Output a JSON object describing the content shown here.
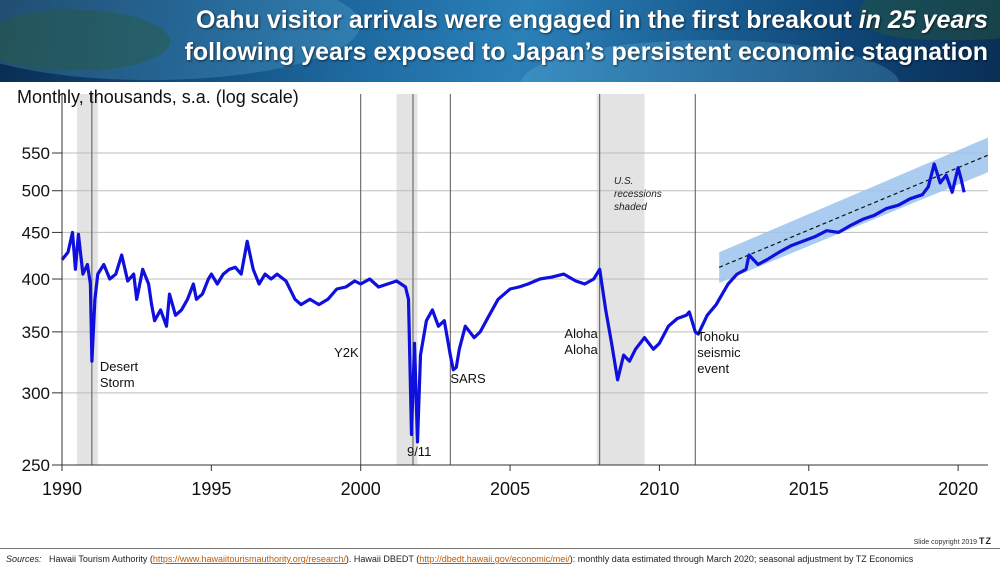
{
  "header": {
    "title_line1_normal": "Oahu visitor arrivals were engaged in the first breakout ",
    "title_line1_italic": "in 25 years",
    "title_line2": "following years exposed to Japan’s persistent economic stagnation"
  },
  "footer": {
    "sources_label": "Sources:",
    "source_1": "Hawaii Tourism Authority (",
    "source_1_link": "https://www.hawaiitourismauthority.org/research/",
    "source_1_close": ").  Hawaii DBEDT (",
    "source_2_link": "http://dbedt.hawaii.gov/economic/mei/",
    "source_2_close": "): monthly data estimated through March 2020; seasonal adjustment by TZ Economics",
    "copyright": "Slide copyright 2019",
    "logo": "TZ"
  },
  "colors": {
    "series": "#1010dd",
    "trend_band": "#9cc3ef",
    "recession": "#e3e3e3",
    "banner": "#1a5f94"
  },
  "chart_data": {
    "type": "line",
    "title": "",
    "ylabel": "Monthly, thousands, s.a. (log scale)",
    "xlabel": "",
    "y_scale": "log",
    "ylim": [
      250,
      580
    ],
    "xlim": [
      1990,
      2021
    ],
    "y_ticks": [
      250,
      300,
      350,
      400,
      450,
      500,
      550
    ],
    "x_ticks": [
      1990,
      1995,
      2000,
      2005,
      2010,
      2015,
      2020
    ],
    "recessions": [
      [
        1990.5,
        1991.2
      ],
      [
        2001.2,
        2001.9
      ],
      [
        2007.9,
        2009.5
      ]
    ],
    "recession_note": "U.S. recessions shaded",
    "events": [
      {
        "year": 1991.0,
        "label": "Desert Storm"
      },
      {
        "year": 2000.0,
        "label": "Y2K"
      },
      {
        "year": 2001.75,
        "label": "9/11"
      },
      {
        "year": 2003.0,
        "label": "SARS"
      },
      {
        "year": 2008.0,
        "label": "Aloha Aloha"
      },
      {
        "year": 2011.2,
        "label": "Tohoku seismic event"
      }
    ],
    "trend": {
      "x": [
        2012.0,
        2021.0
      ],
      "y": [
        412,
        547
      ],
      "band_x": [
        2012.0,
        2021.0
      ],
      "band_low": [
        396,
        524
      ],
      "band_high": [
        428,
        572
      ]
    },
    "series": [
      {
        "name": "Oahu visitor arrivals",
        "x": [
          1990.0,
          1990.2,
          1990.35,
          1990.45,
          1990.55,
          1990.7,
          1990.85,
          1990.95,
          1991.0,
          1991.1,
          1991.2,
          1991.4,
          1991.6,
          1991.8,
          1992.0,
          1992.2,
          1992.4,
          1992.5,
          1992.7,
          1992.9,
          1993.0,
          1993.1,
          1993.3,
          1993.5,
          1993.6,
          1993.8,
          1994.0,
          1994.2,
          1994.4,
          1994.5,
          1994.7,
          1994.9,
          1995.0,
          1995.2,
          1995.4,
          1995.6,
          1995.8,
          1996.0,
          1996.2,
          1996.4,
          1996.6,
          1996.8,
          1997.0,
          1997.2,
          1997.5,
          1997.8,
          1998.0,
          1998.3,
          1998.6,
          1998.9,
          1999.2,
          1999.5,
          1999.8,
          2000.0,
          2000.3,
          2000.6,
          2000.9,
          2001.2,
          2001.5,
          2001.6,
          2001.7,
          2001.8,
          2001.9,
          2002.0,
          2002.2,
          2002.4,
          2002.6,
          2002.8,
          2003.0,
          2003.1,
          2003.2,
          2003.3,
          2003.5,
          2003.8,
          2004.0,
          2004.3,
          2004.6,
          2005.0,
          2005.3,
          2005.6,
          2006.0,
          2006.4,
          2006.8,
          2007.2,
          2007.5,
          2007.8,
          2008.0,
          2008.2,
          2008.4,
          2008.6,
          2008.8,
          2009.0,
          2009.2,
          2009.5,
          2009.8,
          2010.0,
          2010.3,
          2010.6,
          2010.9,
          2011.0,
          2011.2,
          2011.3,
          2011.6,
          2011.9,
          2012.0,
          2012.3,
          2012.6,
          2012.9,
          2013.0,
          2013.3,
          2013.6,
          2014.0,
          2014.4,
          2014.8,
          2015.2,
          2015.6,
          2016.0,
          2016.4,
          2016.8,
          2017.2,
          2017.6,
          2018.0,
          2018.4,
          2018.8,
          2019.0,
          2019.2,
          2019.4,
          2019.6,
          2019.8,
          2020.0,
          2020.1,
          2020.2
        ],
        "y": [
          420,
          428,
          450,
          410,
          448,
          405,
          415,
          395,
          325,
          380,
          405,
          415,
          400,
          405,
          425,
          398,
          405,
          380,
          410,
          395,
          375,
          360,
          370,
          355,
          385,
          365,
          370,
          380,
          395,
          380,
          385,
          400,
          405,
          395,
          405,
          410,
          412,
          405,
          440,
          410,
          395,
          405,
          400,
          405,
          398,
          380,
          375,
          380,
          375,
          380,
          390,
          392,
          398,
          395,
          400,
          392,
          395,
          398,
          392,
          380,
          270,
          340,
          265,
          330,
          360,
          370,
          355,
          360,
          330,
          318,
          320,
          335,
          355,
          345,
          350,
          365,
          380,
          390,
          392,
          395,
          400,
          402,
          405,
          398,
          395,
          400,
          410,
          370,
          340,
          310,
          330,
          325,
          335,
          345,
          335,
          340,
          355,
          362,
          365,
          368,
          350,
          348,
          365,
          375,
          380,
          395,
          405,
          410,
          425,
          415,
          420,
          428,
          435,
          440,
          445,
          452,
          450,
          458,
          465,
          470,
          478,
          482,
          490,
          495,
          505,
          535,
          510,
          520,
          498,
          530,
          515,
          498
        ]
      }
    ]
  }
}
